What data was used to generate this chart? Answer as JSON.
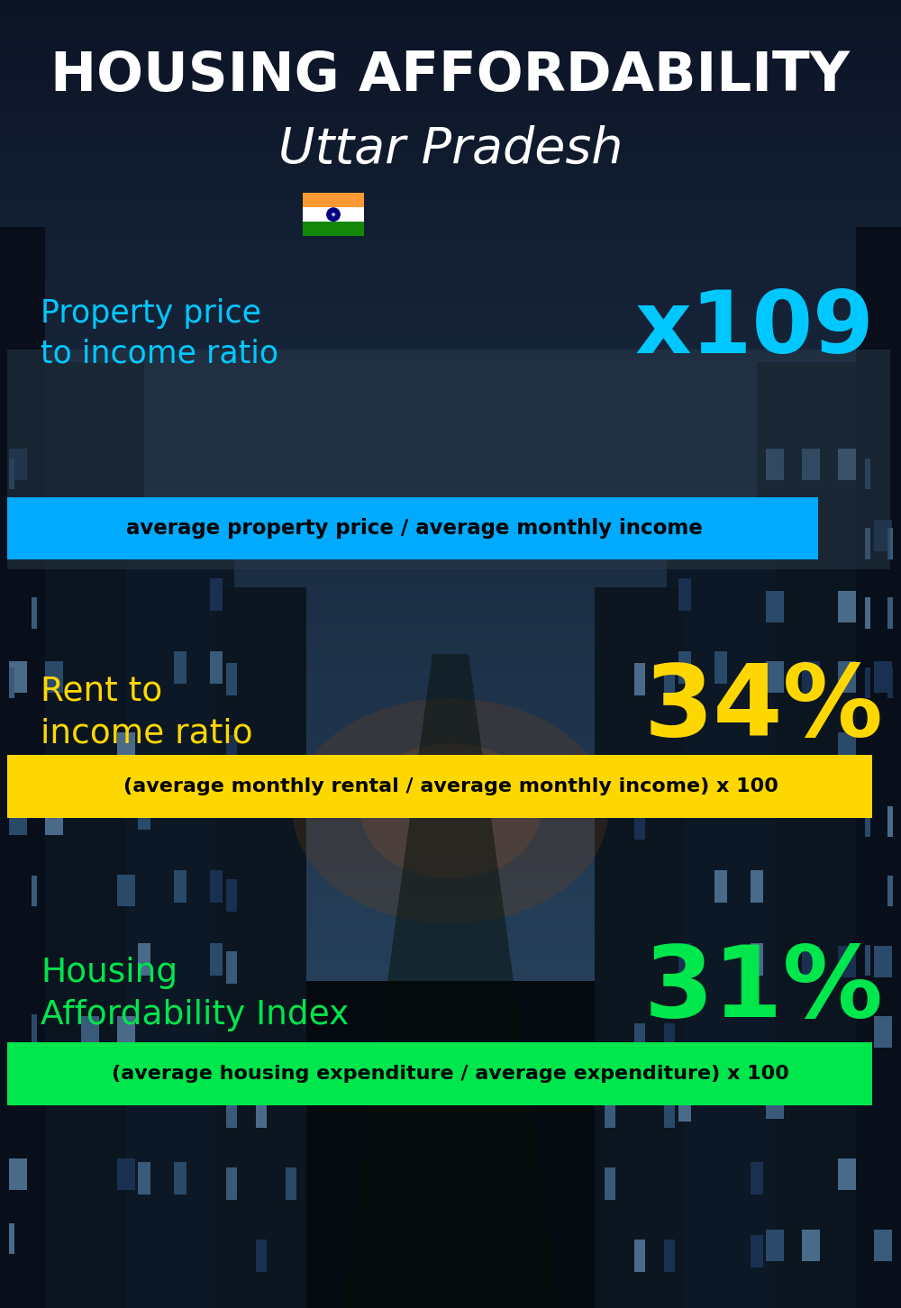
{
  "title_line1": "HOUSING AFFORDABILITY",
  "title_line2": "Uttar Pradesh",
  "bg_color": "#0d1520",
  "section1_label": "Property price\nto income ratio",
  "section1_value": "x109",
  "section1_label_color": "#00c8ff",
  "section1_value_color": "#00c8ff",
  "section1_banner_text": "average property price / average monthly income",
  "section1_banner_bg": "#00aaff",
  "section1_banner_text_color": "#000000",
  "section2_label": "Rent to\nincome ratio",
  "section2_value": "34%",
  "section2_label_color": "#ffd700",
  "section2_value_color": "#ffd700",
  "section2_banner_text": "(average monthly rental / average monthly income) x 100",
  "section2_banner_bg": "#ffd700",
  "section2_banner_text_color": "#000000",
  "section3_label": "Housing\nAffordability Index",
  "section3_value": "31%",
  "section3_label_color": "#00e64d",
  "section3_value_color": "#00e64d",
  "section3_banner_text": "(average housing expenditure / average expenditure) x 100",
  "section3_banner_bg": "#00e64d",
  "section3_banner_text_color": "#000000",
  "flag_colors": [
    "#FF9933",
    "#FFFFFF",
    "#138808"
  ],
  "flag_ashoka_color": "#000080",
  "overlay_color": "#1a2a3a",
  "figsize": [
    10.0,
    14.52
  ],
  "dpi": 100
}
